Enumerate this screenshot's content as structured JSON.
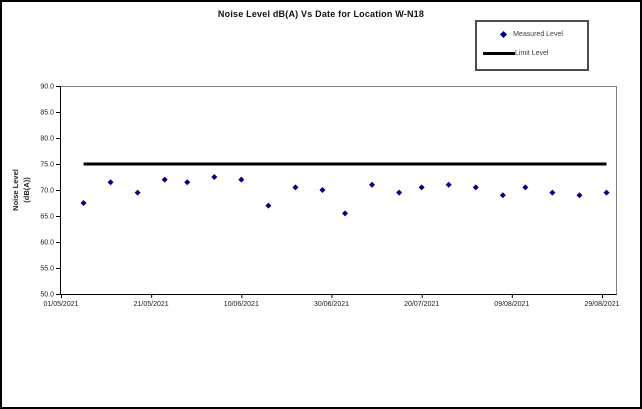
{
  "figure": {
    "title": "Noise Level dB(A) Vs Date for Location W-N18",
    "background": "#ffffff",
    "border_color": "#000000"
  },
  "legend": {
    "entries": [
      {
        "label": "Measured Level",
        "type": "marker",
        "marker": "diamond",
        "color": "#000080"
      },
      {
        "label": "Limit Level",
        "type": "line",
        "color": "#000000"
      }
    ]
  },
  "chart_data": {
    "type": "scatter",
    "title": "Noise Level dB(A) Vs Date for Location W-N18",
    "xlabel": "",
    "ylabel": "Noise Level (dB(A))",
    "ylabel_lines": [
      "Noise Level",
      "(dB(A))"
    ],
    "grid": false,
    "legend_position": "top-right",
    "colors": {
      "measured_marker": "#000080",
      "limit_line": "#000000",
      "plot_border": "#808080",
      "axis": "#000000"
    },
    "y_axis": {
      "min": 50,
      "max": 90,
      "step": 5,
      "tick_labels": [
        "90.0",
        "85.0",
        "80.0",
        "75.0",
        "70.0",
        "65.0",
        "60.0",
        "55.0",
        "50.0"
      ]
    },
    "x_axis": {
      "start_date": "01/05/2021",
      "days_per_tick": 20,
      "axis_span_days": 123,
      "tick_labels": [
        "01/05/2021",
        "21/05/2021",
        "10/06/2021",
        "30/06/2021",
        "20/07/2021",
        "09/08/2021",
        "29/08/2021"
      ]
    },
    "series": [
      {
        "name": "Measured Level",
        "type": "scatter",
        "marker": "diamond",
        "color": "#000080",
        "points": [
          {
            "day": 5,
            "date": "06/05/2021",
            "value": 67.5
          },
          {
            "day": 11,
            "date": "12/05/2021",
            "value": 71.5
          },
          {
            "day": 17,
            "date": "18/05/2021",
            "value": 69.5
          },
          {
            "day": 23,
            "date": "24/05/2021",
            "value": 72.0
          },
          {
            "day": 28,
            "date": "29/05/2021",
            "value": 71.5
          },
          {
            "day": 34,
            "date": "04/06/2021",
            "value": 72.5
          },
          {
            "day": 40,
            "date": "10/06/2021",
            "value": 72.0
          },
          {
            "day": 46,
            "date": "16/06/2021",
            "value": 67.0
          },
          {
            "day": 52,
            "date": "22/06/2021",
            "value": 70.5
          },
          {
            "day": 58,
            "date": "28/06/2021",
            "value": 70.0
          },
          {
            "day": 63,
            "date": "03/07/2021",
            "value": 65.5
          },
          {
            "day": 69,
            "date": "09/07/2021",
            "value": 71.0
          },
          {
            "day": 75,
            "date": "15/07/2021",
            "value": 69.5
          },
          {
            "day": 80,
            "date": "20/07/2021",
            "value": 70.5
          },
          {
            "day": 86,
            "date": "26/07/2021",
            "value": 71.0
          },
          {
            "day": 92,
            "date": "01/08/2021",
            "value": 70.5
          },
          {
            "day": 98,
            "date": "07/08/2021",
            "value": 69.0
          },
          {
            "day": 103,
            "date": "12/08/2021",
            "value": 70.5
          },
          {
            "day": 109,
            "date": "18/08/2021",
            "value": 69.5
          },
          {
            "day": 115,
            "date": "24/08/2021",
            "value": 69.0
          },
          {
            "day": 121,
            "date": "30/08/2021",
            "value": 69.5
          }
        ]
      },
      {
        "name": "Limit Level",
        "type": "line",
        "color": "#000000",
        "value": 75.0,
        "span_days": [
          5,
          121
        ]
      }
    ]
  }
}
